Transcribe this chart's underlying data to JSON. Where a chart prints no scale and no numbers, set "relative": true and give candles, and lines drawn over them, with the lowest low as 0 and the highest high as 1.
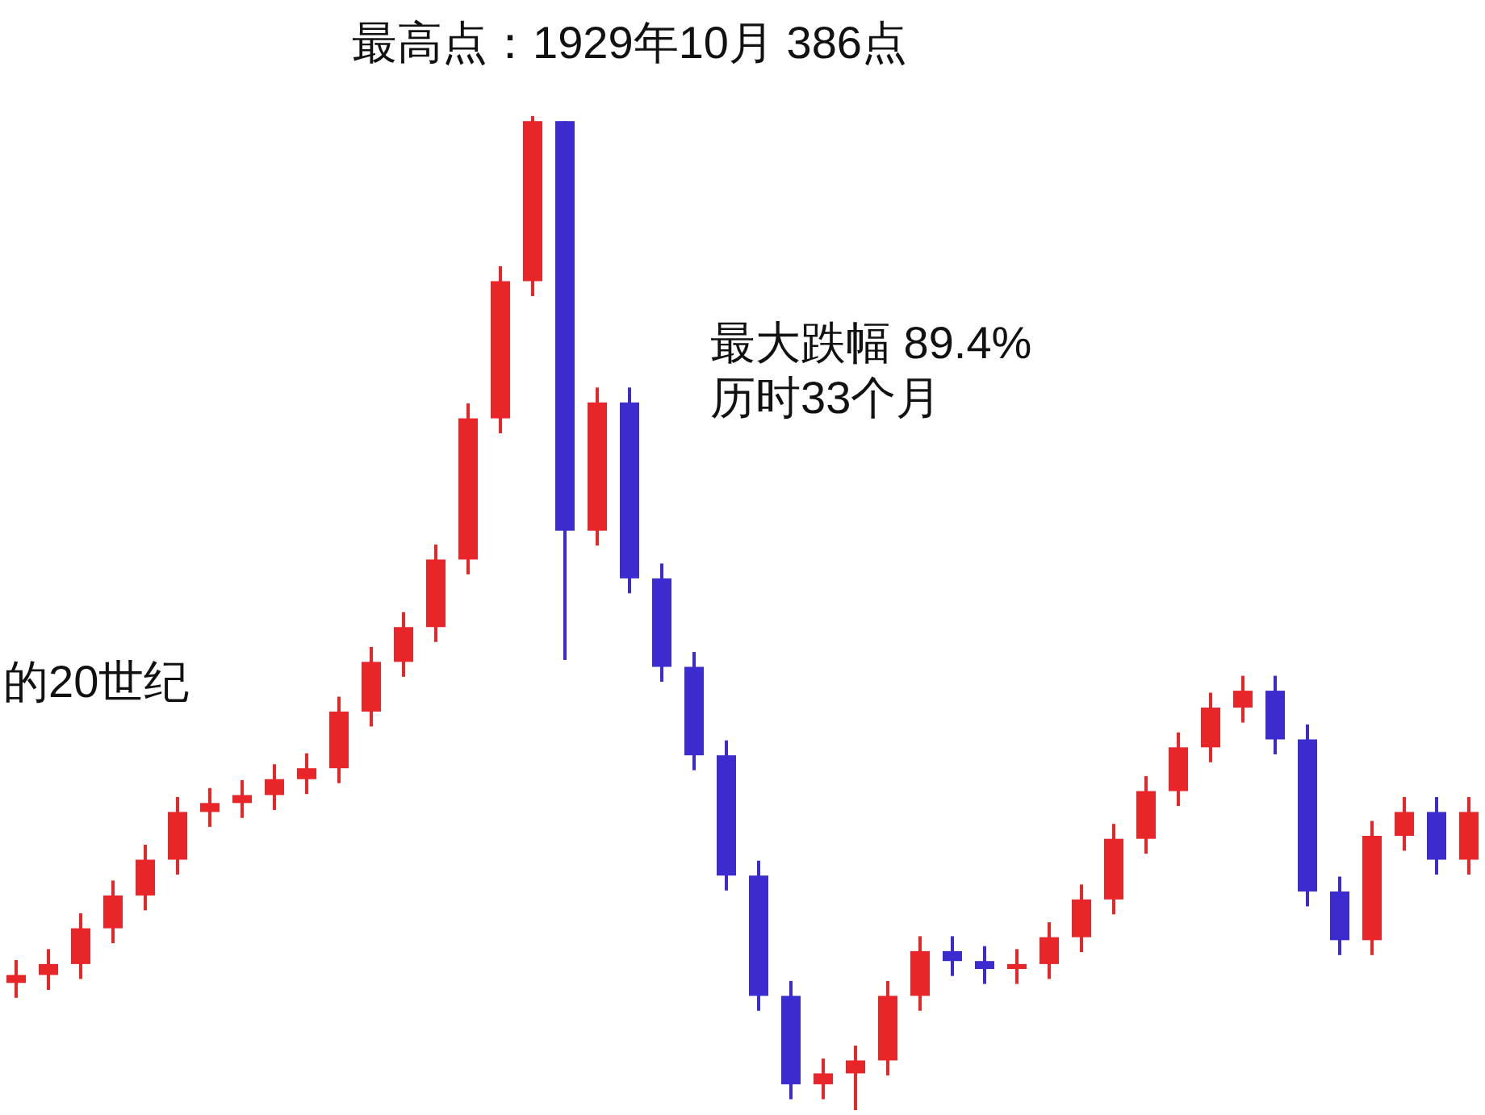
{
  "chart_data": {
    "type": "candlestick",
    "relative": true,
    "title": "最高点：1929年10月 386点",
    "annotations": [
      "最大跌幅 89.4%",
      "历时33个月",
      "的20世纪"
    ],
    "categories": [
      null,
      null,
      null,
      null,
      null,
      null,
      null,
      null,
      null,
      null,
      null,
      null,
      null,
      null,
      null,
      null,
      null,
      null,
      null,
      null,
      null,
      null,
      null,
      null,
      null,
      null,
      null,
      null,
      null,
      null,
      null,
      null,
      null,
      null,
      null,
      null,
      null,
      null,
      null,
      null,
      null,
      null,
      null,
      null,
      null,
      null
    ],
    "ohlc": [
      [
        0.128,
        0.151,
        0.113,
        0.136
      ],
      [
        0.136,
        0.162,
        0.121,
        0.147
      ],
      [
        0.147,
        0.198,
        0.132,
        0.183
      ],
      [
        0.183,
        0.231,
        0.168,
        0.216
      ],
      [
        0.216,
        0.267,
        0.201,
        0.252
      ],
      [
        0.252,
        0.315,
        0.237,
        0.3
      ],
      [
        0.3,
        0.324,
        0.285,
        0.309
      ],
      [
        0.309,
        0.332,
        0.294,
        0.317
      ],
      [
        0.317,
        0.348,
        0.302,
        0.333
      ],
      [
        0.333,
        0.359,
        0.318,
        0.344
      ],
      [
        0.344,
        0.416,
        0.329,
        0.401
      ],
      [
        0.401,
        0.466,
        0.386,
        0.451
      ],
      [
        0.451,
        0.501,
        0.436,
        0.486
      ],
      [
        0.486,
        0.569,
        0.471,
        0.554
      ],
      [
        0.554,
        0.711,
        0.539,
        0.696
      ],
      [
        0.696,
        0.849,
        0.681,
        0.834
      ],
      [
        0.834,
        1,
        0.819,
        0.995
      ],
      [
        0.995,
        0.995,
        0.453,
        0.583
      ],
      [
        0.583,
        0.727,
        0.568,
        0.712
      ],
      [
        0.712,
        0.727,
        0.52,
        0.535
      ],
      [
        0.535,
        0.55,
        0.431,
        0.446
      ],
      [
        0.446,
        0.461,
        0.342,
        0.357
      ],
      [
        0.357,
        0.372,
        0.221,
        0.236
      ],
      [
        0.236,
        0.251,
        0.1,
        0.115
      ],
      [
        0.115,
        0.13,
        0.011,
        0.026
      ],
      [
        0.026,
        0.052,
        0.011,
        0.037
      ],
      [
        0.037,
        0.065,
        0,
        0.05
      ],
      [
        0.05,
        0.13,
        0.035,
        0.115
      ],
      [
        0.115,
        0.175,
        0.1,
        0.16
      ],
      [
        0.16,
        0.175,
        0.135,
        0.15
      ],
      [
        0.15,
        0.165,
        0.127,
        0.142
      ],
      [
        0.142,
        0.162,
        0.127,
        0.147
      ],
      [
        0.147,
        0.189,
        0.132,
        0.174
      ],
      [
        0.174,
        0.227,
        0.159,
        0.212
      ],
      [
        0.212,
        0.288,
        0.197,
        0.273
      ],
      [
        0.273,
        0.336,
        0.258,
        0.321
      ],
      [
        0.321,
        0.38,
        0.306,
        0.365
      ],
      [
        0.365,
        0.42,
        0.35,
        0.405
      ],
      [
        0.405,
        0.437,
        0.39,
        0.422
      ],
      [
        0.422,
        0.437,
        0.358,
        0.373
      ],
      [
        0.373,
        0.388,
        0.205,
        0.22
      ],
      [
        0.22,
        0.235,
        0.156,
        0.171
      ],
      [
        0.171,
        0.291,
        0.156,
        0.276
      ],
      [
        0.276,
        0.315,
        0.261,
        0.3
      ],
      [
        0.3,
        0.315,
        0.237,
        0.252
      ],
      [
        0.252,
        0.315,
        0.237,
        0.3
      ]
    ],
    "colors": [
      "#e8262a",
      "#e8262a",
      "#e8262a",
      "#e8262a",
      "#e8262a",
      "#e8262a",
      "#e8262a",
      "#e8262a",
      "#e8262a",
      "#e8262a",
      "#e8262a",
      "#e8262a",
      "#e8262a",
      "#e8262a",
      "#e8262a",
      "#e8262a",
      "#e8262a",
      "#3a2ccf",
      "#e8262a",
      "#3a2ccf",
      "#3a2ccf",
      "#3a2ccf",
      "#3a2ccf",
      "#3a2ccf",
      "#3a2ccf",
      "#e8262a",
      "#e8262a",
      "#e8262a",
      "#e8262a",
      "#3a2ccf",
      "#3a2ccf",
      "#e8262a",
      "#e8262a",
      "#e8262a",
      "#e8262a",
      "#e8262a",
      "#e8262a",
      "#e8262a",
      "#e8262a",
      "#3a2ccf",
      "#3a2ccf",
      "#3a2ccf",
      "#e8262a",
      "#e8262a",
      "#3a2ccf",
      "#e8262a"
    ]
  }
}
